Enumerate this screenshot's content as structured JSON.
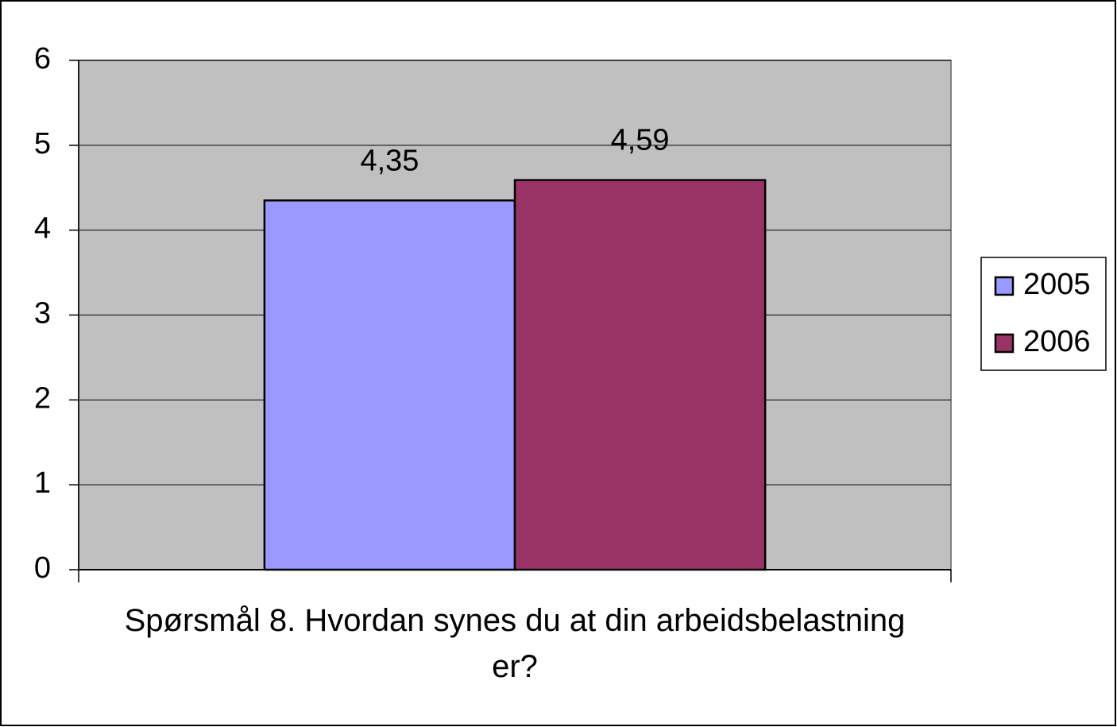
{
  "chart_data": {
    "type": "bar",
    "categories": [
      "Spørsmål 8. Hvordan synes du at din arbeidsbelastning er?"
    ],
    "series": [
      {
        "name": "2005",
        "color": "#9999ff",
        "values": [
          4.35
        ],
        "value_labels": [
          "4,35"
        ]
      },
      {
        "name": "2006",
        "color": "#993366",
        "values": [
          4.59
        ],
        "value_labels": [
          "4,59"
        ]
      }
    ],
    "ylim": [
      0,
      6
    ],
    "yticks": [
      0,
      1,
      2,
      3,
      4,
      5,
      6
    ],
    "grid": true,
    "legend": "right"
  }
}
